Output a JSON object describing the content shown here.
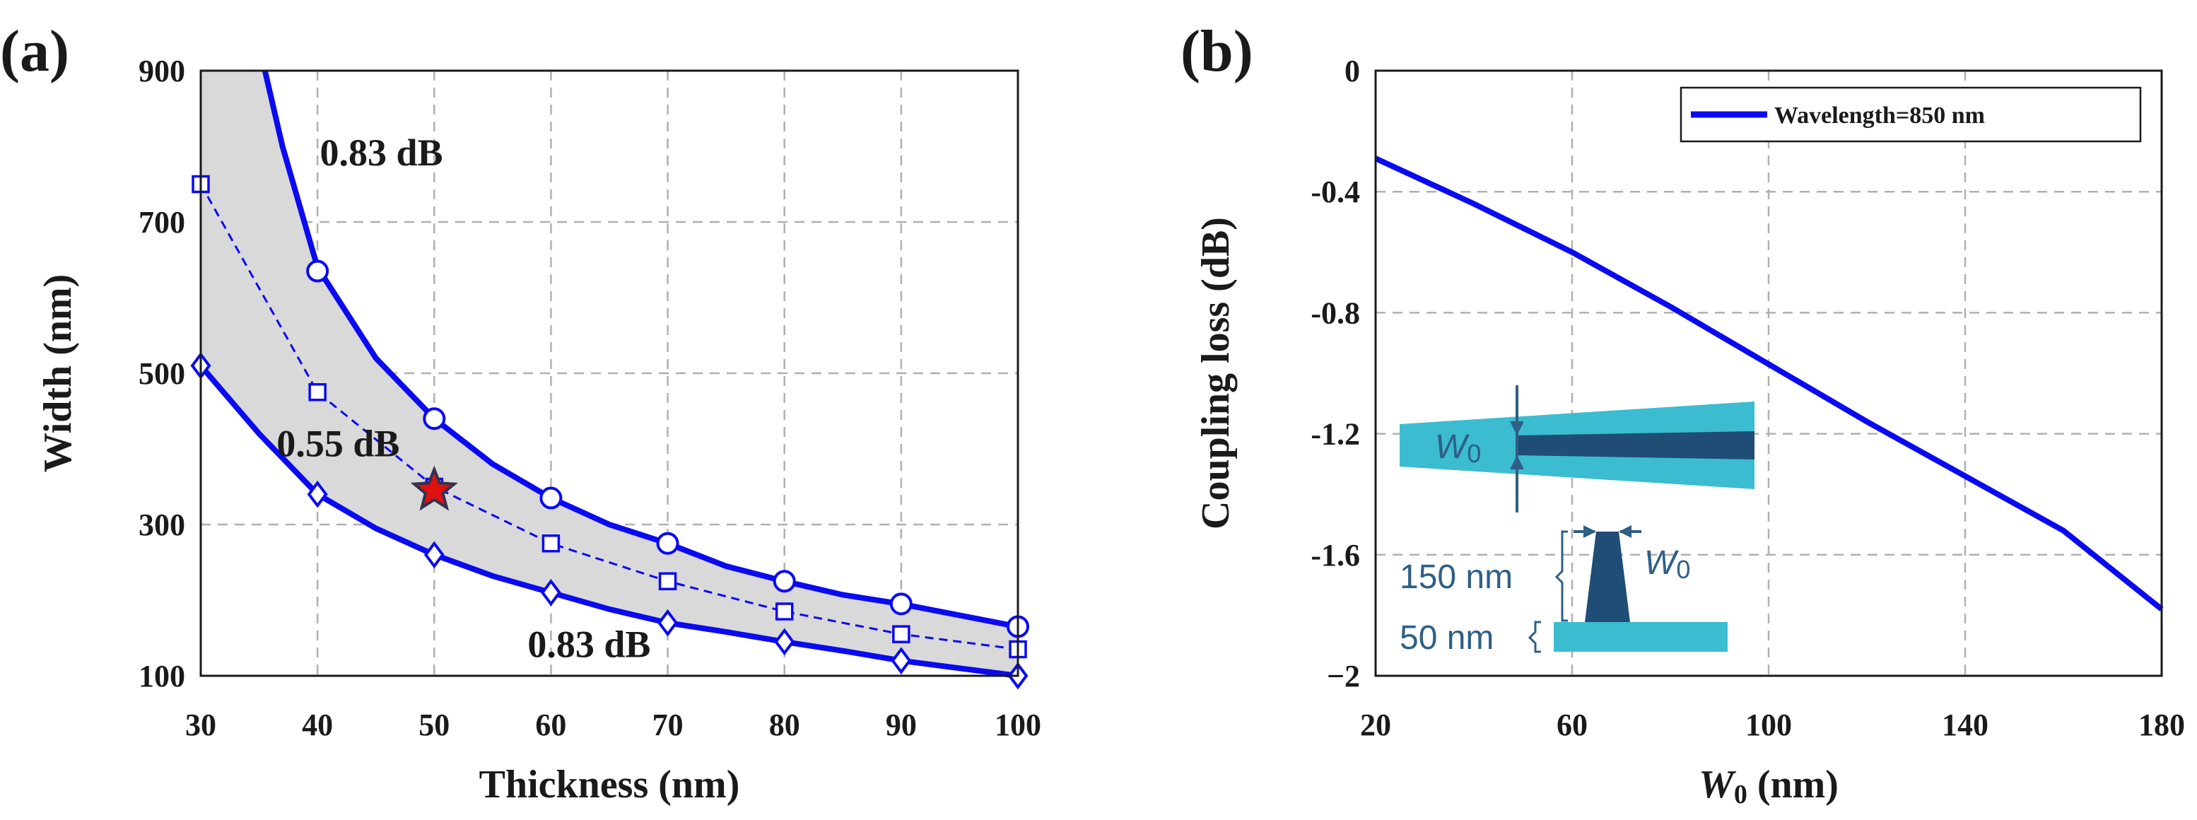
{
  "chart_data": [
    {
      "panel_label": "(a)",
      "type": "line",
      "xlabel": "Thickness (nm)",
      "ylabel": "Width (nm)",
      "xlim": [
        30,
        100
      ],
      "ylim": [
        100,
        900
      ],
      "xticks": [
        30,
        40,
        50,
        60,
        70,
        80,
        90,
        100
      ],
      "yticks": [
        100,
        300,
        500,
        700,
        900
      ],
      "grid": true,
      "series": [
        {
          "name": "0.83 dB (upper)",
          "marker": "circle",
          "color": "#0a0af0",
          "curve_x": [
            35.5,
            37,
            40,
            45,
            50,
            55,
            60,
            65,
            70,
            75,
            80,
            85,
            90,
            95,
            100
          ],
          "curve_y": [
            900,
            800,
            640,
            520,
            440,
            380,
            335,
            300,
            275,
            245,
            225,
            207,
            195,
            180,
            165
          ],
          "x": [
            40,
            50,
            60,
            70,
            80,
            90,
            100
          ],
          "y": [
            635,
            440,
            335,
            275,
            225,
            195,
            165
          ]
        },
        {
          "name": "0.55 dB",
          "marker": "square",
          "dashed": true,
          "color": "#0a0af0",
          "x": [
            30,
            40,
            50,
            60,
            70,
            80,
            90,
            100
          ],
          "y": [
            750,
            475,
            350,
            275,
            225,
            185,
            155,
            135
          ]
        },
        {
          "name": "0.83 dB (lower)",
          "marker": "diamond",
          "color": "#0a0af0",
          "curve_x": [
            30,
            35,
            40,
            45,
            50,
            55,
            60,
            65,
            70,
            75,
            80,
            85,
            90,
            95,
            100
          ],
          "curve_y": [
            510,
            420,
            340,
            295,
            260,
            232,
            210,
            188,
            170,
            158,
            145,
            133,
            120,
            110,
            100
          ],
          "x": [
            30,
            40,
            50,
            60,
            70,
            80,
            90,
            100
          ],
          "y": [
            510,
            340,
            260,
            210,
            170,
            145,
            120,
            100
          ]
        }
      ],
      "star_marker": {
        "x": 50,
        "y": 345,
        "color": "#e01010"
      },
      "annotations": [
        {
          "text": "0.83 dB",
          "x": 40.2,
          "y": 775
        },
        {
          "text": "0.55 dB",
          "x": 36.5,
          "y": 390
        },
        {
          "text": "0.83 dB",
          "x": 58,
          "y": 125
        }
      ]
    },
    {
      "panel_label": "(b)",
      "type": "line",
      "xlabel_italic": "W",
      "xlabel_sub": "0",
      "xlabel_rest": " (nm)",
      "ylabel": "Coupling loss (dB)",
      "xlim": [
        20,
        180
      ],
      "ylim": [
        -2,
        0
      ],
      "xticks": [
        20,
        60,
        100,
        140,
        180
      ],
      "yticks": [
        "0",
        "-0.4",
        "-0.8",
        "-1.2",
        "-1.6",
        "−2"
      ],
      "ytick_values": [
        0,
        -0.4,
        -0.8,
        -1.2,
        -1.6,
        -2
      ],
      "grid": true,
      "series": [
        {
          "name": "Wavelength=850 nm",
          "color": "#0a0af0",
          "x": [
            20,
            40,
            60,
            80,
            100,
            120,
            140,
            160,
            180
          ],
          "y": [
            -0.29,
            -0.44,
            -0.6,
            -0.78,
            -0.97,
            -1.16,
            -1.34,
            -1.52,
            -1.78
          ]
        }
      ],
      "legend": {
        "text": "Wavelength=850 nm",
        "position": "top-right"
      },
      "inset": {
        "w0_top": "W",
        "w0_top_sub": "0",
        "w0_bottom": "W",
        "w0_bottom_sub": "0",
        "label_150": "150 nm",
        "label_50": "50 nm",
        "light_color": "#3bbcd0",
        "dark_color": "#1f4d75"
      }
    }
  ]
}
